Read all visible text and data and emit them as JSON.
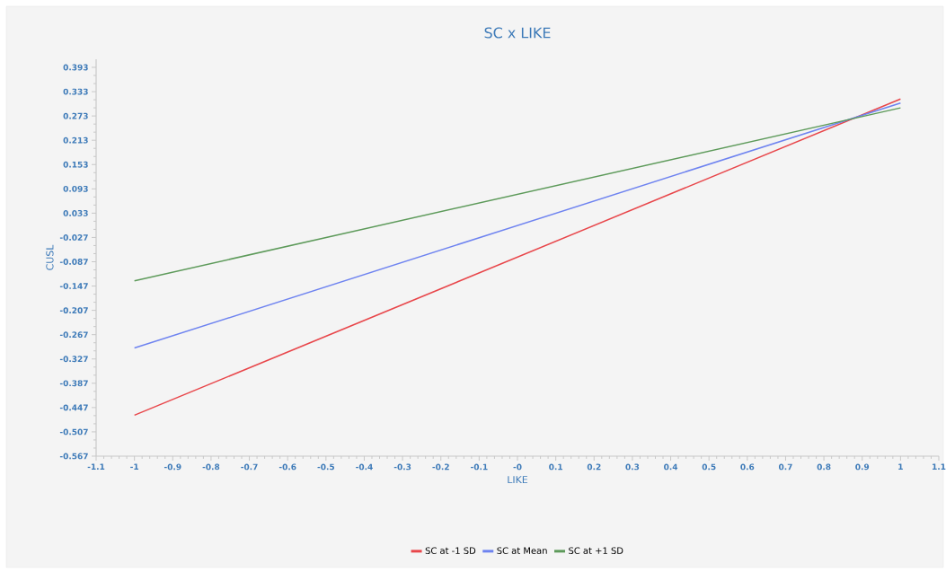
{
  "chart_data": {
    "type": "line",
    "title": "SC x LIKE",
    "xlabel": "LIKE",
    "ylabel": "CUSL",
    "x": [
      -1,
      1
    ],
    "series": [
      {
        "name": "SC at -1 SD",
        "color": "#e8464a",
        "values": [
          -0.466,
          0.315
        ]
      },
      {
        "name": "SC at Mean",
        "color": "#6e83f0",
        "values": [
          -0.3,
          0.305
        ]
      },
      {
        "name": "SC at +1 SD",
        "color": "#5d9a5a",
        "values": [
          -0.134,
          0.293
        ]
      }
    ],
    "xlim": [
      -1.1,
      1.1
    ],
    "xticks": [
      -1.1,
      -1,
      -0.9,
      -0.8,
      -0.7,
      -0.6,
      -0.5,
      -0.4,
      -0.3,
      -0.2,
      -0.1,
      {
        "value": 0,
        "label": "-0"
      },
      0.1,
      0.2,
      0.3,
      0.4,
      0.5,
      0.6,
      0.7,
      0.8,
      0.9,
      1,
      1.1
    ],
    "ylim": [
      -0.567,
      0.413
    ],
    "yticks": [
      -0.567,
      -0.507,
      -0.447,
      -0.387,
      -0.327,
      -0.267,
      -0.207,
      -0.147,
      -0.087,
      -0.027,
      0.033,
      0.093,
      0.153,
      0.213,
      0.273,
      0.333,
      0.393
    ],
    "grid": false,
    "legend": "bottom",
    "marker": "none",
    "line_style": "solid"
  }
}
